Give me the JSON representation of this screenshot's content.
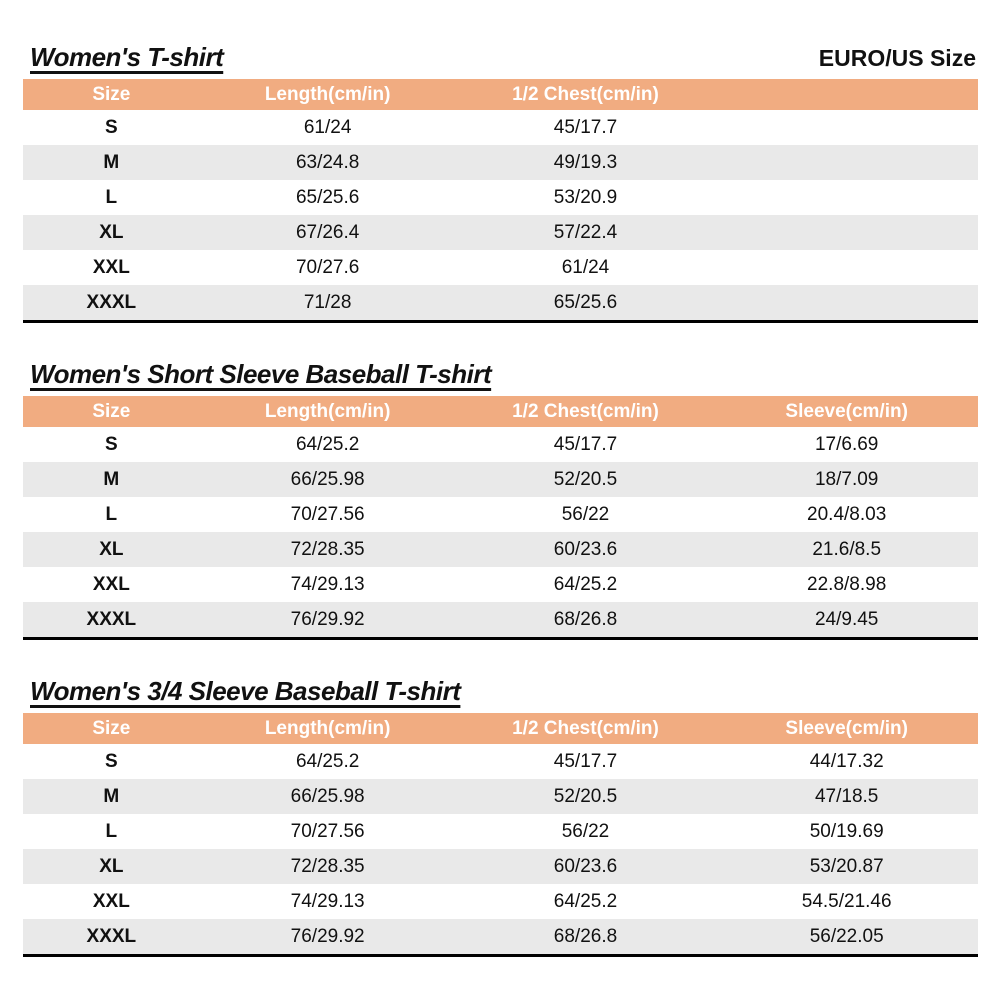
{
  "page": {
    "size_standard_label": "EURO/US Size"
  },
  "colors": {
    "header_bg": "#F1AC81",
    "header_text": "#FFFFFF",
    "row_alt_bg": "#E9E9E9",
    "table_bottom_border": "#000000"
  },
  "tables": [
    {
      "title": "Women's T-shirt",
      "columns": [
        "Size",
        "Length(cm/in)",
        "1/2 Chest(cm/in)",
        ""
      ],
      "rows": [
        [
          "S",
          "61/24",
          "45/17.7",
          ""
        ],
        [
          "M",
          "63/24.8",
          "49/19.3",
          ""
        ],
        [
          "L",
          "65/25.6",
          "53/20.9",
          ""
        ],
        [
          "XL",
          "67/26.4",
          "57/22.4",
          ""
        ],
        [
          "XXL",
          "70/27.6",
          "61/24",
          ""
        ],
        [
          "XXXL",
          "71/28",
          "65/25.6",
          ""
        ]
      ]
    },
    {
      "title": "Women's Short Sleeve Baseball T-shirt",
      "columns": [
        "Size",
        "Length(cm/in)",
        "1/2 Chest(cm/in)",
        "Sleeve(cm/in)"
      ],
      "rows": [
        [
          "S",
          "64/25.2",
          "45/17.7",
          "17/6.69"
        ],
        [
          "M",
          "66/25.98",
          "52/20.5",
          "18/7.09"
        ],
        [
          "L",
          "70/27.56",
          "56/22",
          "20.4/8.03"
        ],
        [
          "XL",
          "72/28.35",
          "60/23.6",
          "21.6/8.5"
        ],
        [
          "XXL",
          "74/29.13",
          "64/25.2",
          "22.8/8.98"
        ],
        [
          "XXXL",
          "76/29.92",
          "68/26.8",
          "24/9.45"
        ]
      ]
    },
    {
      "title": "Women's 3/4 Sleeve Baseball T-shirt",
      "columns": [
        "Size",
        "Length(cm/in)",
        "1/2 Chest(cm/in)",
        "Sleeve(cm/in)"
      ],
      "rows": [
        [
          "S",
          "64/25.2",
          "45/17.7",
          "44/17.32"
        ],
        [
          "M",
          "66/25.98",
          "52/20.5",
          "47/18.5"
        ],
        [
          "L",
          "70/27.56",
          "56/22",
          "50/19.69"
        ],
        [
          "XL",
          "72/28.35",
          "60/23.6",
          "53/20.87"
        ],
        [
          "XXL",
          "74/29.13",
          "64/25.2",
          "54.5/21.46"
        ],
        [
          "XXXL",
          "76/29.92",
          "68/26.8",
          "56/22.05"
        ]
      ]
    }
  ]
}
